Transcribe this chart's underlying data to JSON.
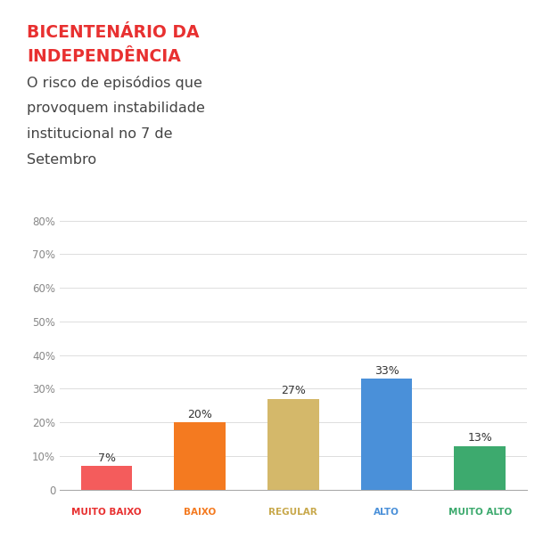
{
  "title_line1": "BICENTENÁRIO DA",
  "title_line2": "INDEPENDÊNCIA",
  "subtitle_lines": [
    "O risco de episódios que",
    "provoquem instabilidade",
    "institucional no 7 de",
    "Setembro"
  ],
  "categories": [
    "MUITO BAIXO",
    "BAIXO",
    "REGULAR",
    "ALTO",
    "MUITO ALTO"
  ],
  "values": [
    7,
    20,
    27,
    33,
    13
  ],
  "bar_colors": [
    "#F45C5C",
    "#F47A20",
    "#D4B86A",
    "#4A90D9",
    "#3DAA6E"
  ],
  "title_color": "#E83030",
  "subtitle_color": "#444444",
  "xlabel_colors": [
    "#E83030",
    "#F47A20",
    "#C8A84B",
    "#4A90D9",
    "#3DAA6E"
  ],
  "ylim": [
    0,
    80
  ],
  "yticks": [
    0,
    10,
    20,
    30,
    40,
    50,
    60,
    70,
    80
  ],
  "background_color": "#FFFFFF",
  "grid_color": "#DDDDDD",
  "value_label_fontsize": 9,
  "xlabel_fontsize": 7.5,
  "ytick_fontsize": 8.5,
  "title_fontsize": 13.5,
  "subtitle_fontsize": 11.5
}
